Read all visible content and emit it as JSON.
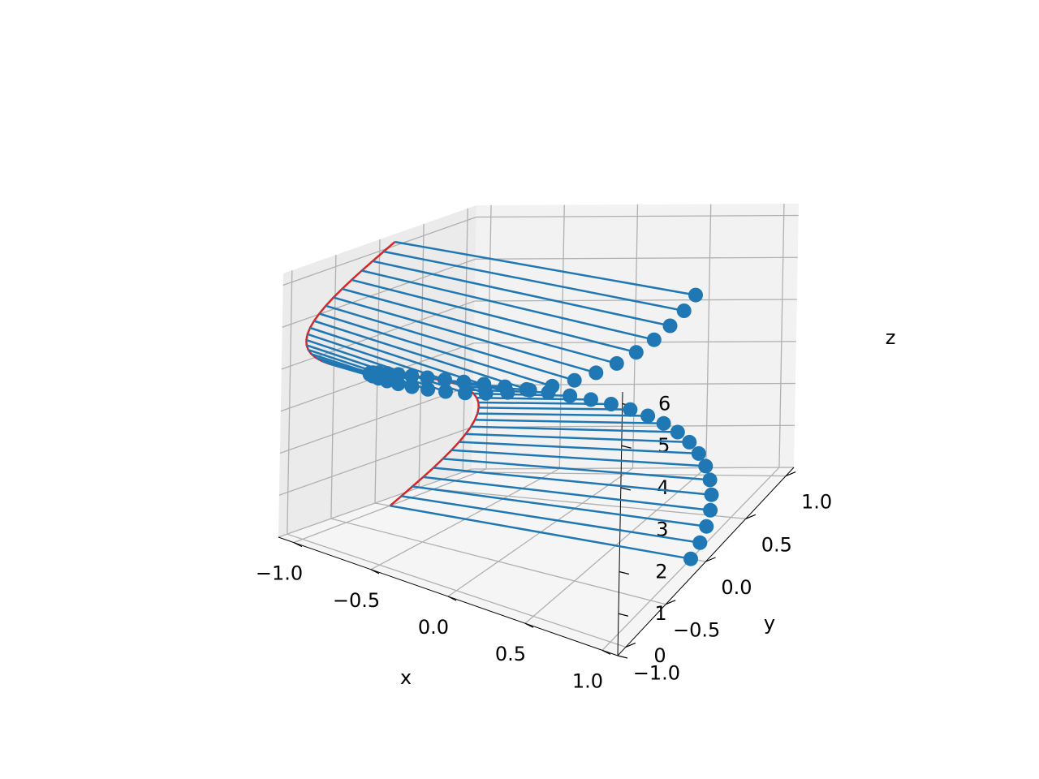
{
  "chart_data": {
    "type": "stem3d",
    "title": "",
    "xlabel": "x",
    "ylabel": "y",
    "zlabel": "z",
    "xlim": [
      -1.1,
      1.1
    ],
    "ylim": [
      -1.1,
      1.1
    ],
    "zlim": [
      0,
      6.28
    ],
    "x_ticks": [
      -1.0,
      -0.5,
      0.0,
      0.5,
      1.0
    ],
    "x_tick_labels": [
      "−1.0",
      "−0.5",
      "0.0",
      "0.5",
      "1.0"
    ],
    "y_ticks": [
      -1.0,
      -0.5,
      0.0,
      0.5,
      1.0
    ],
    "y_tick_labels": [
      "−1.0",
      "−0.5",
      "0.0",
      "0.5",
      "1.0"
    ],
    "z_ticks": [
      0,
      1,
      2,
      3,
      4,
      5,
      6
    ],
    "z_tick_labels": [
      "0",
      "1",
      "2",
      "3",
      "4",
      "5",
      "6"
    ],
    "grid": true,
    "legend": "none",
    "orientation": "x",
    "bottom": -1,
    "parametric": "x = cos(t), y = sin(t), z = t",
    "t_range": [
      0,
      6.2832
    ],
    "n_points": 50,
    "colors": {
      "stems": "#1f77b4",
      "markers": "#1f77b4",
      "baseline": "#d62728",
      "grid": "#b0b0b0",
      "pane_back": "#f2f2f2",
      "pane_side": "#ebebeb",
      "pane_floor": "#f5f5f5"
    }
  }
}
